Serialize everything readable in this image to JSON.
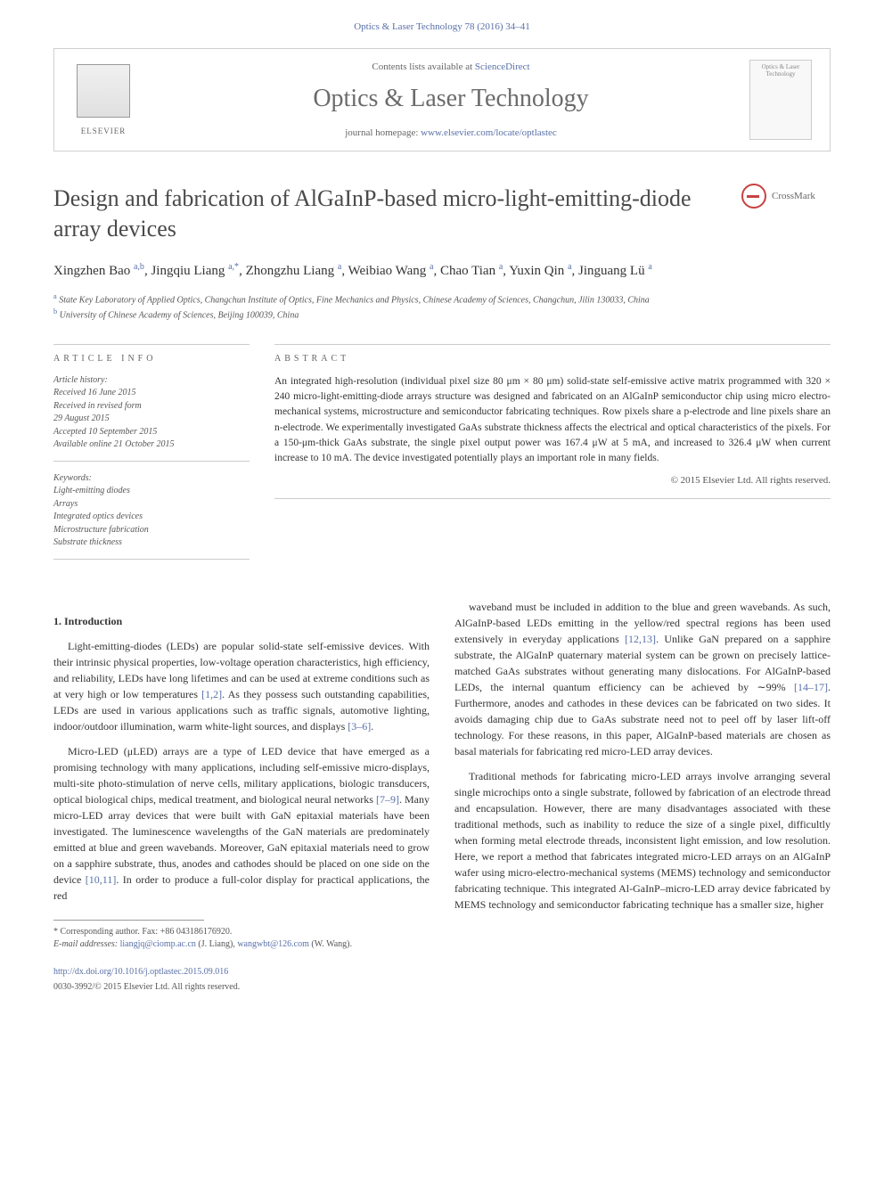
{
  "journal_ref": "Optics & Laser Technology 78 (2016) 34–41",
  "header": {
    "contents_prefix": "Contents lists available at ",
    "contents_link": "ScienceDirect",
    "journal_name": "Optics & Laser Technology",
    "homepage_prefix": "journal homepage: ",
    "homepage_link": "www.elsevier.com/locate/optlastec",
    "elsevier": "ELSEVIER",
    "cover_text": "Optics & Laser Technology"
  },
  "crossmark": "CrossMark",
  "title": "Design and fabrication of AlGaInP-based micro-light-emitting-diode array devices",
  "authors_html": "Xingzhen Bao <sup>a,b</sup>, Jingqiu Liang <sup>a,*</sup>, Zhongzhu Liang <sup>a</sup>, Weibiao Wang <sup>a</sup>, Chao Tian <sup>a</sup>, Yuxin Qin <sup>a</sup>, Jinguang Lü <sup>a</sup>",
  "affiliations": {
    "a": "State Key Laboratory of Applied Optics, Changchun Institute of Optics, Fine Mechanics and Physics, Chinese Academy of Sciences, Changchun, Jilin 130033, China",
    "b": "University of Chinese Academy of Sciences, Beijing 100039, China"
  },
  "info": {
    "heading": "ARTICLE INFO",
    "history_label": "Article history:",
    "history": [
      "Received 16 June 2015",
      "Received in revised form",
      "29 August 2015",
      "Accepted 10 September 2015",
      "Available online 21 October 2015"
    ],
    "keywords_label": "Keywords:",
    "keywords": [
      "Light-emitting diodes",
      "Arrays",
      "Integrated optics devices",
      "Microstructure fabrication",
      "Substrate thickness"
    ]
  },
  "abstract": {
    "heading": "ABSTRACT",
    "text": "An integrated high-resolution (individual pixel size 80 μm × 80 μm) solid-state self-emissive active matrix programmed with 320 × 240 micro-light-emitting-diode arrays structure was designed and fabricated on an AlGaInP semiconductor chip using micro electro-mechanical systems, microstructure and semiconductor fabricating techniques. Row pixels share a p-electrode and line pixels share an n-electrode. We experimentally investigated GaAs substrate thickness affects the electrical and optical characteristics of the pixels. For a 150-μm-thick GaAs substrate, the single pixel output power was 167.4 μW at 5 mA, and increased to 326.4 μW when current increase to 10 mA. The device investigated potentially plays an important role in many fields.",
    "copyright": "© 2015 Elsevier Ltd. All rights reserved."
  },
  "body": {
    "section1_heading": "1. Introduction",
    "left": [
      "Light-emitting-diodes (LEDs) are popular solid-state self-emissive devices. With their intrinsic physical properties, low-voltage operation characteristics, high efficiency, and reliability, LEDs have long lifetimes and can be used at extreme conditions such as at very high or low temperatures [1,2]. As they possess such outstanding capabilities, LEDs are used in various applications such as traffic signals, automotive lighting, indoor/outdoor illumination, warm white-light sources, and displays [3–6].",
      "Micro-LED (μLED) arrays are a type of LED device that have emerged as a promising technology with many applications, including self-emissive micro-displays, multi-site photo-stimulation of nerve cells, military applications, biologic transducers, optical biological chips, medical treatment, and biological neural networks [7–9]. Many micro-LED array devices that were built with GaN epitaxial materials have been investigated. The luminescence wavelengths of the GaN materials are predominately emitted at blue and green wavebands. Moreover, GaN epitaxial materials need to grow on a sapphire substrate, thus, anodes and cathodes should be placed on one side on the device [10,11]. In order to produce a full-color display for practical applications, the red"
    ],
    "right": [
      "waveband must be included in addition to the blue and green wavebands. As such, AlGaInP-based LEDs emitting in the yellow/red spectral regions has been used extensively in everyday applications [12,13]. Unlike GaN prepared on a sapphire substrate, the AlGaInP quaternary material system can be grown on precisely lattice-matched GaAs substrates without generating many dislocations. For AlGaInP-based LEDs, the internal quantum efficiency can be achieved by ∼99% [14–17]. Furthermore, anodes and cathodes in these devices can be fabricated on two sides. It avoids damaging chip due to GaAs substrate need not to peel off by laser lift-off technology. For these reasons, in this paper, AlGaInP-based materials are chosen as basal materials for fabricating red micro-LED array devices.",
      "Traditional methods for fabricating micro-LED arrays involve arranging several single microchips onto a single substrate, followed by fabrication of an electrode thread and encapsulation. However, there are many disadvantages associated with these traditional methods, such as inability to reduce the size of a single pixel, difficultly when forming metal electrode threads, inconsistent light emission, and low resolution. Here, we report a method that fabricates integrated micro-LED arrays on an AlGaInP wafer using micro-electro-mechanical systems (MEMS) technology and semiconductor fabricating technique. This integrated Al-GaInP–micro-LED array device fabricated by MEMS technology and semiconductor fabricating technique has a smaller size, higher"
    ]
  },
  "footnotes": {
    "corr": "* Corresponding author. Fax: +86 043186176920.",
    "email_label": "E-mail addresses: ",
    "email1": "liangjq@ciomp.ac.cn",
    "email1_who": " (J. Liang), ",
    "email2": "wangwbt@126.com",
    "email2_who": " (W. Wang)."
  },
  "doi": "http://dx.doi.org/10.1016/j.optlastec.2015.09.016",
  "issn": "0030-3992/© 2015 Elsevier Ltd. All rights reserved.",
  "citation_refs": [
    "[1,2]",
    "[3–6]",
    "[7–9]",
    "[10,11]",
    "[12,13]",
    "[14–17]"
  ],
  "colors": {
    "link": "#5870a8",
    "text": "#333333",
    "heading_gray": "#4a4a4a",
    "border": "#d0d0d0"
  }
}
